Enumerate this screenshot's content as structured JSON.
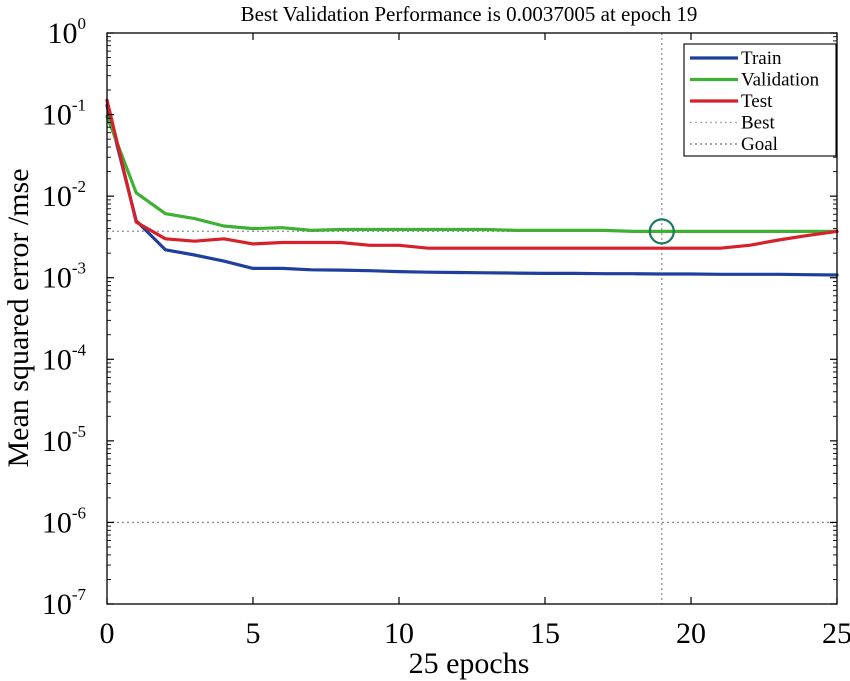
{
  "chart_data": {
    "type": "line",
    "title": "Best Validation Performance is 0.0037005 at epoch 19",
    "xlabel": "25 epochs",
    "ylabel": "Mean squared error /mse",
    "xlim": [
      0,
      25
    ],
    "ylim": [
      1e-07,
      1
    ],
    "yscale": "log",
    "xticks": [
      0,
      5,
      10,
      15,
      20,
      25
    ],
    "xtick_labels": [
      "0",
      "5",
      "10",
      "15",
      "20",
      "25"
    ],
    "yticks": [
      {
        "value": 1,
        "base": "10",
        "exp": "0"
      },
      {
        "value": 0.1,
        "base": "10",
        "exp": "-1"
      },
      {
        "value": 0.01,
        "base": "10",
        "exp": "-2"
      },
      {
        "value": 0.001,
        "base": "10",
        "exp": "-3"
      },
      {
        "value": 0.0001,
        "base": "10",
        "exp": "-4"
      },
      {
        "value": 1e-05,
        "base": "10",
        "exp": "-5"
      },
      {
        "value": 1e-06,
        "base": "10",
        "exp": "-6"
      },
      {
        "value": 1e-07,
        "base": "10",
        "exp": "-7"
      }
    ],
    "x": [
      0,
      1,
      2,
      3,
      4,
      5,
      6,
      7,
      8,
      9,
      10,
      11,
      12,
      13,
      14,
      15,
      16,
      17,
      18,
      19,
      20,
      21,
      22,
      23,
      24,
      25
    ],
    "series": [
      {
        "name": "Train",
        "color": "#1f3f9e",
        "values": [
          0.13,
          0.005,
          0.0022,
          0.0019,
          0.0016,
          0.0013,
          0.0013,
          0.00125,
          0.00124,
          0.00122,
          0.00119,
          0.00117,
          0.00116,
          0.00115,
          0.00114,
          0.00113,
          0.00113,
          0.00112,
          0.00112,
          0.00111,
          0.00111,
          0.0011,
          0.0011,
          0.0011,
          0.00109,
          0.00108
        ]
      },
      {
        "name": "Validation",
        "color": "#3fb034",
        "values": [
          0.095,
          0.011,
          0.0061,
          0.0053,
          0.0043,
          0.004,
          0.0041,
          0.0038,
          0.0039,
          0.0039,
          0.0039,
          0.0039,
          0.0039,
          0.0039,
          0.0038,
          0.0038,
          0.0038,
          0.0038,
          0.0037,
          0.0037005,
          0.0037,
          0.0037,
          0.0037,
          0.0037,
          0.0037,
          0.0037
        ]
      },
      {
        "name": "Test",
        "color": "#d7202a",
        "values": [
          0.15,
          0.0048,
          0.003,
          0.0028,
          0.003,
          0.0026,
          0.0027,
          0.0027,
          0.0027,
          0.0025,
          0.0025,
          0.0023,
          0.0023,
          0.0023,
          0.0023,
          0.0023,
          0.0023,
          0.0023,
          0.0023,
          0.0023,
          0.0023,
          0.0023,
          0.0025,
          0.0029,
          0.0033,
          0.0037
        ]
      }
    ],
    "best": {
      "label": "Best",
      "epoch": 19,
      "value": 0.0037005,
      "color": "#1a7a5a"
    },
    "goal": {
      "label": "Goal",
      "value": 1e-06
    },
    "legend": {
      "position": "top-right",
      "entries": [
        "Train",
        "Validation",
        "Test",
        "Best",
        "Goal"
      ]
    },
    "grid": false
  }
}
